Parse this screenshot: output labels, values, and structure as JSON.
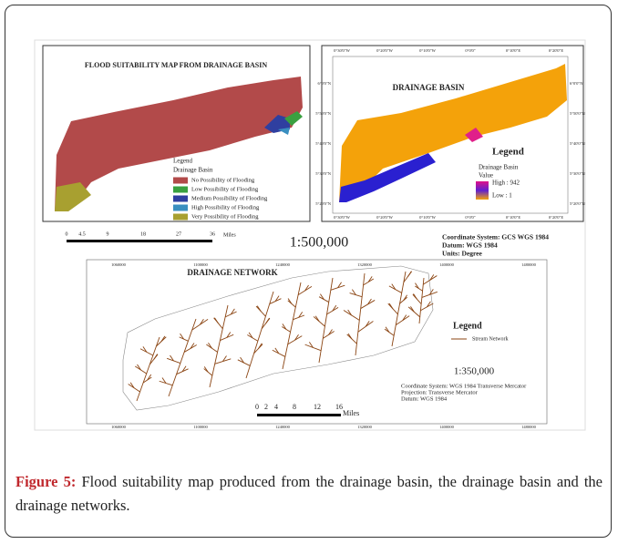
{
  "figure": {
    "flood_map": {
      "title": "FLOOD SUITABILITY MAP FROM DRAINAGE BASIN",
      "legend_title": "Legend",
      "legend_subtitle": "Drainage Basin",
      "legend_items": [
        "No Possibility of Flooding",
        "Low Possibility of Flooding",
        "Medium Possibility of Flooding",
        "High Possibility of Flooding",
        "Very Possibility of Flooding"
      ],
      "scale_numbers": [
        "0",
        "4.5",
        "9",
        "18",
        "27",
        "36"
      ],
      "scale_unit": "Miles",
      "scale": "1:500,000"
    },
    "basin_map": {
      "title": "DRAINAGE BASIN",
      "top_labels": [
        "0°30'0\"W",
        "0°20'0\"W",
        "0°10'0\"W",
        "0°0'0\"",
        "0°10'0\"E",
        "0°20'0\"E"
      ],
      "side_labels": [
        "6°0'0\"N",
        "5°50'0\"N",
        "5°40'0\"N",
        "5°30'0\"N",
        "5°20'0\"N"
      ],
      "legend_title": "Legend",
      "legend_subtitle": "Drainage Basin",
      "legend_value": "Value",
      "high": "High : 942",
      "low": "Low : 1",
      "coordinates": [
        "Coordinate System: GCS WGS 1984",
        "Datum: WGS 1984",
        "Units: Degree"
      ]
    },
    "network_map": {
      "title": "DRAINAGE NETWORK",
      "grid_labels": [
        "1060000",
        "1100000",
        "1240000",
        "1320000",
        "1400000",
        "1480000"
      ],
      "legend_title": "Legend",
      "legend_item": "Stream Network",
      "scale": "1:350,000",
      "coordinates": [
        "Coordinate System: WGS 1984 Transverse Mercator",
        "Projection: Transverse Mercator",
        "Datum: WGS 1984"
      ],
      "scale_numbers": [
        "0",
        "2",
        "4",
        "8",
        "12",
        "16"
      ],
      "scale_unit": "Miles"
    },
    "caption": {
      "label": "Figure 5:",
      "text": "Flood suitability map produced from the drainage basin, the drainage basin and the drainage networks."
    }
  }
}
